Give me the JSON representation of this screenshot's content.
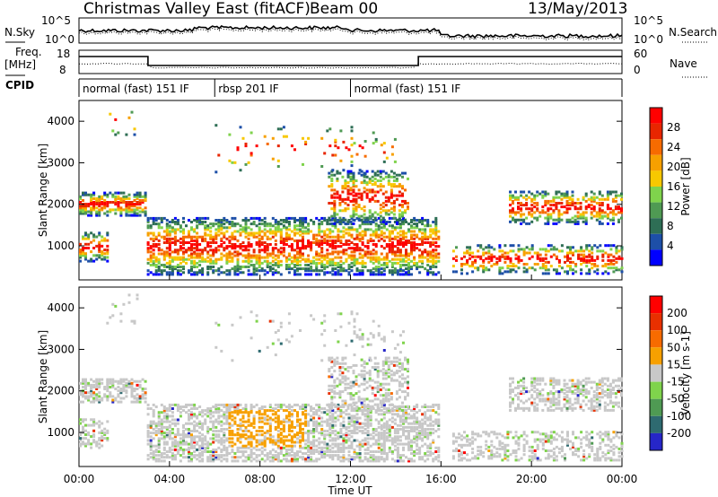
{
  "header": {
    "title": "Christmas Valley East (fitACF)",
    "beam": "Beam 00",
    "date": "13/May/2013"
  },
  "strip_labels": {
    "nsky": "N.Sky",
    "nsearch": "N.Search",
    "freq": "Freq.",
    "freq_unit": "[MHz]",
    "nave": "Nave",
    "cpid": "CPID",
    "noise_ticks": [
      "10^5",
      "10^0"
    ],
    "freq_ticks": [
      "18",
      "8"
    ],
    "nave_ticks": [
      "60",
      "0"
    ]
  },
  "cpid_segments": [
    {
      "label": "normal (fast) 151 IF",
      "start_hour": 0,
      "end_hour": 6
    },
    {
      "label": "rbsp 201 IF",
      "start_hour": 6,
      "end_hour": 12
    },
    {
      "label": "normal (fast) 151 IF",
      "start_hour": 12,
      "end_hour": 24
    }
  ],
  "chart_data": [
    {
      "type": "heatmap",
      "panel": "power",
      "ylabel": "Slant Range [km]",
      "xlabel": "Time UT",
      "xlim": [
        0,
        24
      ],
      "ylim": [
        180,
        4500
      ],
      "xticks": [
        "00:00",
        "04:00",
        "08:00",
        "12:00",
        "16:00",
        "20:00",
        "00:00"
      ],
      "yticks": [
        1000,
        2000,
        3000,
        4000
      ],
      "colorbar": {
        "label": "Power [dB]",
        "ticks": [
          "4",
          "8",
          "12",
          "16",
          "20",
          "24",
          "28"
        ],
        "colors": [
          "#0000ff",
          "#1d4fa8",
          "#2e6e55",
          "#4f9a53",
          "#7fd34c",
          "#f7c800",
          "#f7a000",
          "#f76b00",
          "#e82600",
          "#ff0000"
        ]
      }
    },
    {
      "type": "heatmap",
      "panel": "velocity",
      "ylabel": "Slant Range [km]",
      "xlabel": "Time UT",
      "xlim": [
        0,
        24
      ],
      "ylim": [
        180,
        4500
      ],
      "xticks": [
        "00:00",
        "04:00",
        "08:00",
        "12:00",
        "16:00",
        "20:00",
        "00:00"
      ],
      "yticks": [
        1000,
        2000,
        3000,
        4000
      ],
      "colorbar": {
        "label": "Velocity [m s-1]",
        "ticks": [
          "200",
          "100",
          "50",
          "15",
          "-15",
          "-50",
          "-100",
          "-200"
        ],
        "colors": [
          "#2626c8",
          "#2e6a70",
          "#4f9a53",
          "#7fd34c",
          "#c8c8c8",
          "#f7a000",
          "#f76b00",
          "#e83000",
          "#ff0000"
        ]
      }
    }
  ]
}
